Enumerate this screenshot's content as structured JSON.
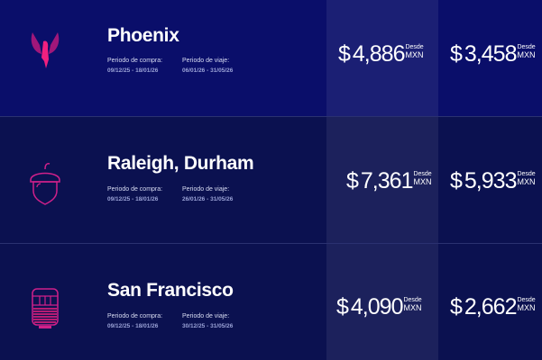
{
  "accent_color": "#e8207e",
  "currency_symbol": "$",
  "from_label": "Desde",
  "currency": "MXN",
  "purchase_label": "Periodo de compra:",
  "travel_label": "Periodo de viaje:",
  "rows": [
    {
      "city": "Phoenix",
      "icon": "phoenix-icon",
      "purchase": "09/12/25 - 18/01/26",
      "travel": "06/01/26 - 31/05/26",
      "price1": "4,886",
      "price2": "3,458"
    },
    {
      "city": "Raleigh, Durham",
      "icon": "acorn-icon",
      "purchase": "09/12/25 - 18/01/26",
      "travel": "26/01/26 - 31/05/26",
      "price1": "7,361",
      "price2": "5,933"
    },
    {
      "city": "San Francisco",
      "icon": "cable-car-icon",
      "purchase": "09/12/25 - 18/01/26",
      "travel": "30/12/25 - 31/05/26",
      "price1": "4,090",
      "price2": "2,662"
    }
  ]
}
